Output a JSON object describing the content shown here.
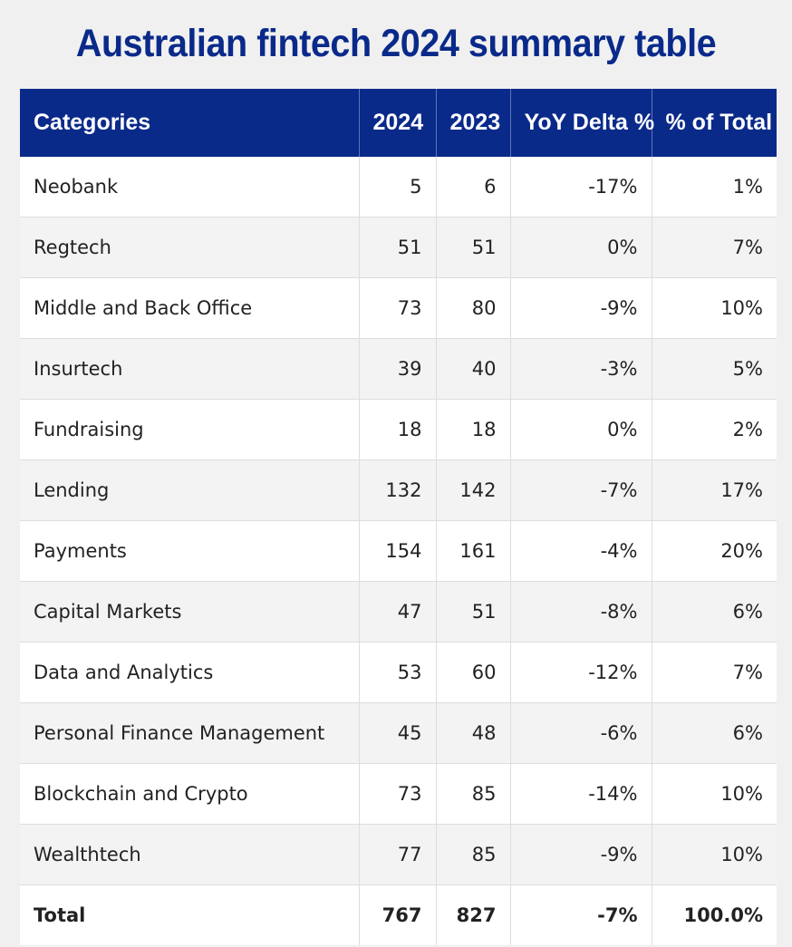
{
  "colors": {
    "title_text": "#0a2a8a",
    "header_background": "#0a2a8a",
    "header_text": "#ffffff",
    "row_white": "#ffffff",
    "row_grey": "#f3f3f3",
    "page_background": "#f0f0f0"
  },
  "chart_data": {
    "type": "table",
    "title": "Australian fintech 2024 summary table",
    "columns": [
      "Categories",
      "2024",
      "2023",
      "YoY Delta %",
      "% of Total"
    ],
    "rows": [
      [
        "Neobank",
        "5",
        "6",
        "-17%",
        "1%"
      ],
      [
        "Regtech",
        "51",
        "51",
        "0%",
        "7%"
      ],
      [
        "Middle and Back Office",
        "73",
        "80",
        "-9%",
        "10%"
      ],
      [
        "Insurtech",
        "39",
        "40",
        "-3%",
        "5%"
      ],
      [
        "Fundraising",
        "18",
        "18",
        "0%",
        "2%"
      ],
      [
        "Lending",
        "132",
        "142",
        "-7%",
        "17%"
      ],
      [
        "Payments",
        "154",
        "161",
        "-4%",
        "20%"
      ],
      [
        "Capital Markets",
        "47",
        "51",
        "-8%",
        "6%"
      ],
      [
        "Data and Analytics",
        "53",
        "60",
        "-12%",
        "7%"
      ],
      [
        "Personal Finance Management",
        "45",
        "48",
        "-6%",
        "6%"
      ],
      [
        "Blockchain and Crypto",
        "73",
        "85",
        "-14%",
        "10%"
      ],
      [
        "Wealthtech",
        "77",
        "85",
        "-9%",
        "10%"
      ]
    ],
    "total": [
      "Total",
      "767",
      "827",
      "-7%",
      "100.0%"
    ]
  }
}
